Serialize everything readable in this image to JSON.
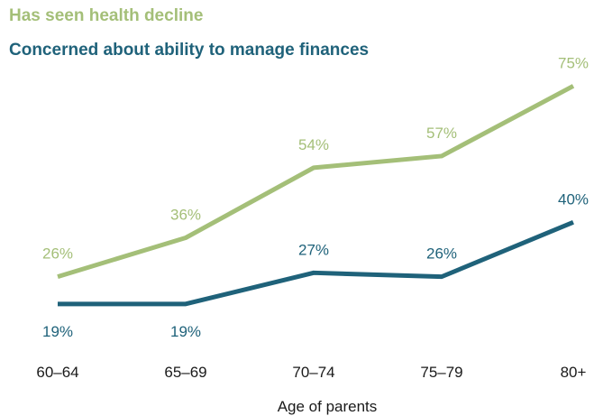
{
  "chart_data": {
    "type": "line",
    "title": "",
    "xlabel": "Age of parents",
    "ylabel": "",
    "categories": [
      "60–64",
      "65–69",
      "70–74",
      "75–79",
      "80+"
    ],
    "series": [
      {
        "name": "Has seen health decline",
        "color": "#a4bf78",
        "values": [
          26,
          36,
          54,
          57,
          75
        ],
        "labels": [
          "26%",
          "36%",
          "54%",
          "57%",
          "75%"
        ],
        "label_position": "above"
      },
      {
        "name": "Concerned about ability to manage finances",
        "color": "#1f627a",
        "values": [
          19,
          19,
          27,
          26,
          40
        ],
        "labels": [
          "19%",
          "19%",
          "27%",
          "26%",
          "40%"
        ],
        "label_position": [
          "below",
          "below",
          "above",
          "above",
          "above"
        ]
      }
    ],
    "grid": false,
    "legend_placement": "top-left"
  }
}
